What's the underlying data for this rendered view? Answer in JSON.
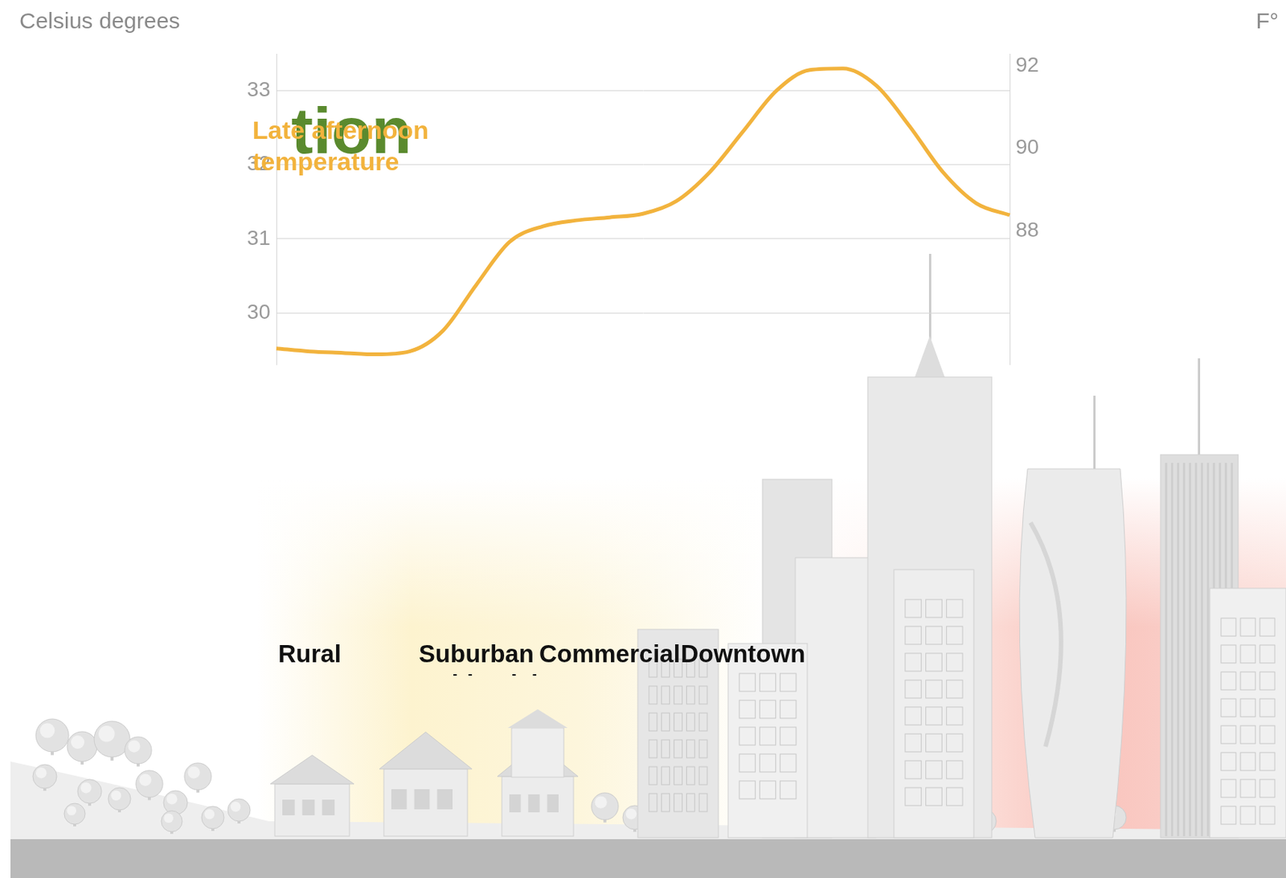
{
  "chart_data": {
    "type": "line",
    "title": "tion",
    "ylabel": "Celsius degrees",
    "y2label": "F°",
    "categories": [
      null,
      "Rural",
      null,
      null,
      null,
      null,
      "Suburban residential",
      null,
      null,
      null,
      "Commercial",
      null,
      null,
      null,
      "Downtown",
      null,
      null,
      null,
      null,
      null,
      null,
      null,
      null
    ],
    "series": [
      {
        "name": "Late afternoon temperature",
        "color": "#f2b33d",
        "values": [
          29.52,
          29.48,
          29.46,
          29.44,
          29.48,
          29.76,
          30.38,
          30.96,
          31.17,
          31.25,
          31.29,
          31.34,
          31.51,
          31.9,
          32.45,
          33.0,
          33.28,
          33.3,
          33.07,
          32.52,
          31.9,
          31.48,
          31.32
        ]
      }
    ],
    "ylim": [
      29.3,
      33.5
    ],
    "yticks": [
      30,
      31,
      32,
      33
    ],
    "y2lim": [
      84.74,
      92.3
    ],
    "y2ticks": [
      88,
      90,
      92
    ],
    "grid": true
  }
}
